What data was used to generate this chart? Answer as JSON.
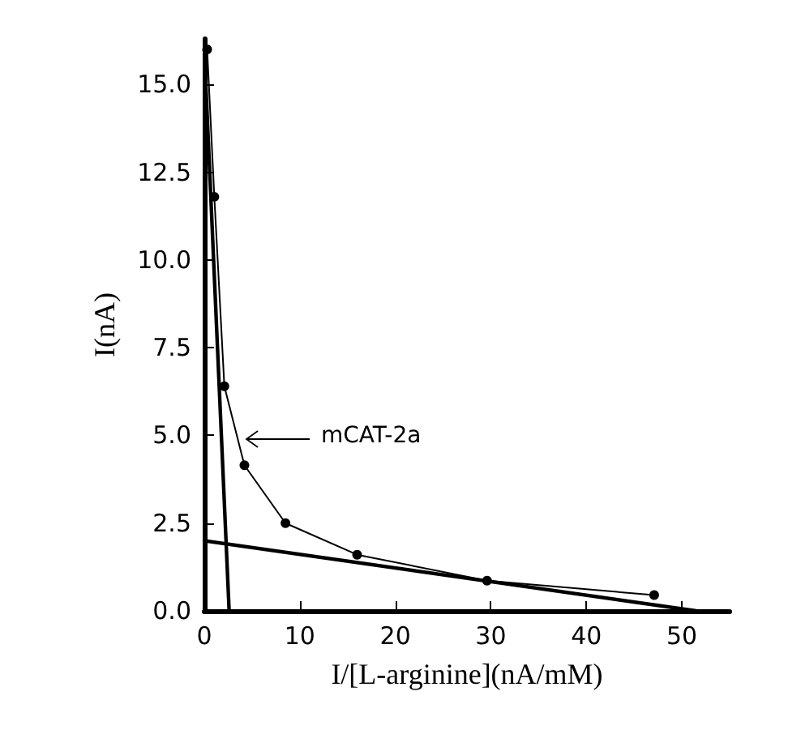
{
  "chart_data": {
    "type": "line",
    "xlabel": "I/[L-arginine](nA/mM)",
    "ylabel": "I(nA)",
    "xlim": [
      0,
      55
    ],
    "ylim": [
      0,
      16.3
    ],
    "xticks": [
      0,
      10,
      20,
      30,
      40,
      50
    ],
    "yticks": [
      {
        "value": 0,
        "label": "0.0"
      },
      {
        "value": 2.5,
        "label": "2.5"
      },
      {
        "value": 5,
        "label": "5.0"
      },
      {
        "value": 7.5,
        "label": "7.5"
      },
      {
        "value": 10,
        "label": "10.0"
      },
      {
        "value": 12.5,
        "label": "12.5"
      },
      {
        "value": 15,
        "label": "15.0"
      }
    ],
    "grid": false,
    "series": [
      {
        "color": "#000000",
        "marker": "circle",
        "x": [
          0.3,
          1.05,
          2.1,
          4.2,
          8.5,
          16,
          29.6,
          47.1
        ],
        "values": [
          16,
          11.8,
          6.4,
          4.15,
          2.5,
          1.6,
          0.86,
          0.45
        ]
      },
      {
        "color": "#000000",
        "marker": "none",
        "x": [
          0,
          2.6
        ],
        "values": [
          16,
          0
        ]
      },
      {
        "color": "#000000",
        "marker": "none",
        "x": [
          0,
          51.5
        ],
        "values": [
          2,
          0
        ]
      }
    ],
    "annotations": [
      "mCAT-2a"
    ]
  }
}
